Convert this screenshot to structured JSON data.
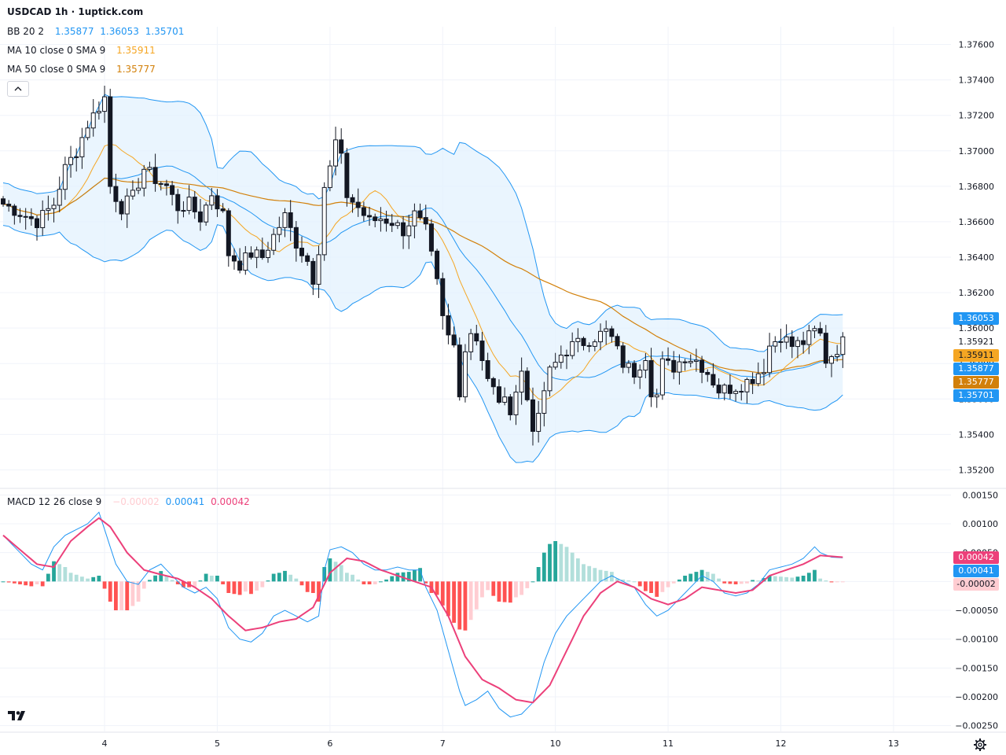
{
  "header": {
    "title": "USDCAD 1h · 1uptick.com",
    "bb_label": "BB 20 2",
    "bb_values": [
      "1.35877",
      "1.36053",
      "1.35701"
    ],
    "ma10_label": "MA 10 close 0 SMA 9",
    "ma10_value": "1.35911",
    "ma50_label": "MA 50 close 0 SMA 9",
    "ma50_value": "1.35777",
    "macd_label": "MACD 12 26 close 9",
    "macd_values": [
      "−0.00002",
      "0.00041",
      "0.00042"
    ]
  },
  "colors": {
    "up": "#131722",
    "down": "#131722",
    "bb": "#2196f3",
    "bb_fill": "#e3f2fd",
    "ma10": "#f5a623",
    "ma50": "#d2800a",
    "macd": "#2196f3",
    "signal": "#ec407a",
    "hist_up_strong": "#26a69a",
    "hist_up_weak": "#b2dfdb",
    "hist_down_strong": "#ff5252",
    "hist_down_weak": "#ffcdd2"
  },
  "price_tags": [
    {
      "text": "1.36053",
      "bg": "#2196f3",
      "fg": "#ffffff",
      "value": 1.36053
    },
    {
      "text": "1.35921",
      "bg": "#ffffff",
      "fg": "#131722",
      "value": 1.35921
    },
    {
      "text": "1.35911",
      "bg": "#f5a623",
      "fg": "#131722",
      "value": 1.35911
    },
    {
      "text": "1.35877",
      "bg": "#2196f3",
      "fg": "#ffffff",
      "value": 1.35877
    },
    {
      "text": "1.35777",
      "bg": "#d2800a",
      "fg": "#ffffff",
      "value": 1.35777
    },
    {
      "text": "1.35701",
      "bg": "#2196f3",
      "fg": "#ffffff",
      "value": 1.35701
    }
  ],
  "macd_tags": [
    {
      "text": "0.00042",
      "bg": "#ec407a",
      "fg": "#ffffff",
      "value": 0.00042
    },
    {
      "text": "0.00041",
      "bg": "#2196f3",
      "fg": "#ffffff",
      "value": 0.00041
    },
    {
      "text": "-0.00002",
      "bg": "#ffcdd2",
      "fg": "#131722",
      "value": -2e-05
    }
  ],
  "chart_data": {
    "type": "candlestick",
    "symbol": "USDCAD",
    "interval": "1h",
    "x_labels": [
      {
        "label": "4",
        "bar": 18
      },
      {
        "label": "5",
        "bar": 38
      },
      {
        "label": "6",
        "bar": 58
      },
      {
        "label": "7",
        "bar": 78
      },
      {
        "label": "10",
        "bar": 98
      },
      {
        "label": "11",
        "bar": 118
      },
      {
        "label": "12",
        "bar": 138
      },
      {
        "label": "13",
        "bar": 158
      }
    ],
    "price_axis": {
      "min": 1.351,
      "max": 1.377,
      "ticks": [
        "1.37600",
        "1.37400",
        "1.37200",
        "1.37000",
        "1.36800",
        "1.36600",
        "1.36400",
        "1.36200",
        "1.36000",
        "1.35800",
        "1.35600",
        "1.35400",
        "1.35200"
      ]
    },
    "macd_axis": {
      "min": -0.0026,
      "max": 0.0016,
      "ticks": [
        "0.00150",
        "0.00100",
        "0.00050",
        "0.00000",
        "-0.00050",
        "-0.00100",
        "-0.00150",
        "-0.00200",
        "-0.00250"
      ]
    },
    "close_anchors": [
      [
        0,
        1.367
      ],
      [
        3,
        1.3665
      ],
      [
        6,
        1.366
      ],
      [
        9,
        1.367
      ],
      [
        11,
        1.369
      ],
      [
        13,
        1.37
      ],
      [
        15,
        1.3715
      ],
      [
        17,
        1.3725
      ],
      [
        18,
        1.373
      ],
      [
        19,
        1.368
      ],
      [
        21,
        1.3668
      ],
      [
        23,
        1.3674
      ],
      [
        25,
        1.369
      ],
      [
        27,
        1.3684
      ],
      [
        29,
        1.368
      ],
      [
        31,
        1.3668
      ],
      [
        33,
        1.367
      ],
      [
        35,
        1.3662
      ],
      [
        37,
        1.3676
      ],
      [
        39,
        1.3664
      ],
      [
        40,
        1.3642
      ],
      [
        42,
        1.3636
      ],
      [
        44,
        1.3642
      ],
      [
        46,
        1.364
      ],
      [
        48,
        1.3652
      ],
      [
        50,
        1.3663
      ],
      [
        52,
        1.3648
      ],
      [
        54,
        1.3638
      ],
      [
        55,
        1.3628
      ],
      [
        56,
        1.3645
      ],
      [
        57,
        1.368
      ],
      [
        58,
        1.369
      ],
      [
        59,
        1.3705
      ],
      [
        60,
        1.3695
      ],
      [
        61,
        1.3675
      ],
      [
        63,
        1.3668
      ],
      [
        65,
        1.366
      ],
      [
        67,
        1.3662
      ],
      [
        69,
        1.366
      ],
      [
        71,
        1.3655
      ],
      [
        73,
        1.3664
      ],
      [
        75,
        1.3655
      ],
      [
        76,
        1.364
      ],
      [
        77,
        1.3625
      ],
      [
        78,
        1.3605
      ],
      [
        79,
        1.3595
      ],
      [
        80,
        1.359
      ],
      [
        81,
        1.3565
      ],
      [
        82,
        1.3588
      ],
      [
        83,
        1.3598
      ],
      [
        84,
        1.3595
      ],
      [
        86,
        1.357
      ],
      [
        88,
        1.356
      ],
      [
        90,
        1.3555
      ],
      [
        92,
        1.3575
      ],
      [
        94,
        1.3545
      ],
      [
        95,
        1.3548
      ],
      [
        96,
        1.3565
      ],
      [
        97,
        1.3575
      ],
      [
        99,
        1.3585
      ],
      [
        101,
        1.359
      ],
      [
        103,
        1.3592
      ],
      [
        105,
        1.3595
      ],
      [
        107,
        1.3598
      ],
      [
        108,
        1.3594
      ],
      [
        110,
        1.358
      ],
      [
        112,
        1.3575
      ],
      [
        114,
        1.3585
      ],
      [
        115,
        1.3565
      ],
      [
        116,
        1.3562
      ],
      [
        117,
        1.358
      ],
      [
        119,
        1.3578
      ],
      [
        121,
        1.3584
      ],
      [
        123,
        1.3582
      ],
      [
        125,
        1.3575
      ],
      [
        127,
        1.3565
      ],
      [
        129,
        1.3566
      ],
      [
        131,
        1.3568
      ],
      [
        133,
        1.3572
      ],
      [
        135,
        1.3578
      ],
      [
        136,
        1.359
      ],
      [
        138,
        1.3596
      ],
      [
        140,
        1.359
      ],
      [
        142,
        1.3592
      ],
      [
        144,
        1.3598
      ],
      [
        145,
        1.3596
      ],
      [
        146,
        1.3582
      ],
      [
        147,
        1.3585
      ],
      [
        149,
        1.3592
      ]
    ],
    "macd_anchors": [
      [
        0,
        0.0008
      ],
      [
        3,
        0.0005
      ],
      [
        5,
        0.0003
      ],
      [
        7,
        0.0002
      ],
      [
        9,
        0.0006
      ],
      [
        11,
        0.0008
      ],
      [
        13,
        0.0009
      ],
      [
        15,
        0.001
      ],
      [
        16,
        0.0011
      ],
      [
        17,
        0.0012
      ],
      [
        18,
        0.0009
      ],
      [
        20,
        0.0003
      ],
      [
        22,
        0.0
      ],
      [
        24,
        -5e-05
      ],
      [
        26,
        0.0002
      ],
      [
        28,
        0.0003
      ],
      [
        30,
        0.0001
      ],
      [
        32,
        -0.0001
      ],
      [
        34,
        -0.0002
      ],
      [
        36,
        -0.0001
      ],
      [
        38,
        -0.0003
      ],
      [
        40,
        -0.0008
      ],
      [
        42,
        -0.001
      ],
      [
        44,
        -0.00105
      ],
      [
        46,
        -0.0009
      ],
      [
        48,
        -0.0006
      ],
      [
        50,
        -0.0005
      ],
      [
        52,
        -0.0006
      ],
      [
        54,
        -0.0007
      ],
      [
        56,
        -0.0006
      ],
      [
        57,
        0.0002
      ],
      [
        58,
        0.00055
      ],
      [
        60,
        0.0006
      ],
      [
        62,
        0.0005
      ],
      [
        64,
        0.0003
      ],
      [
        66,
        0.0002
      ],
      [
        68,
        0.0002
      ],
      [
        70,
        0.00025
      ],
      [
        72,
        0.0002
      ],
      [
        74,
        0.0002
      ],
      [
        75,
        -0.0001
      ],
      [
        77,
        -0.0005
      ],
      [
        79,
        -0.0012
      ],
      [
        81,
        -0.0019
      ],
      [
        82,
        -0.00215
      ],
      [
        84,
        -0.00205
      ],
      [
        86,
        -0.0019
      ],
      [
        88,
        -0.0022
      ],
      [
        90,
        -0.00235
      ],
      [
        92,
        -0.0023
      ],
      [
        94,
        -0.0021
      ],
      [
        96,
        -0.0014
      ],
      [
        98,
        -0.0009
      ],
      [
        100,
        -0.0006
      ],
      [
        102,
        -0.0004
      ],
      [
        104,
        -0.0002
      ],
      [
        106,
        0.0
      ],
      [
        108,
        0.0001
      ],
      [
        110,
        0.0
      ],
      [
        112,
        -0.0001
      ],
      [
        114,
        -0.0004
      ],
      [
        115,
        -0.0005
      ],
      [
        116,
        -0.0006
      ],
      [
        118,
        -0.0005
      ],
      [
        120,
        -0.0003
      ],
      [
        122,
        -0.0001
      ],
      [
        124,
        0.0001
      ],
      [
        126,
        0.0
      ],
      [
        128,
        -0.0002
      ],
      [
        130,
        -0.00025
      ],
      [
        132,
        -0.0002
      ],
      [
        134,
        -5e-05
      ],
      [
        136,
        0.0002
      ],
      [
        138,
        0.00025
      ],
      [
        140,
        0.0003
      ],
      [
        142,
        0.0004
      ],
      [
        144,
        0.0006
      ],
      [
        145,
        0.0005
      ],
      [
        147,
        0.00042
      ],
      [
        149,
        0.00041
      ]
    ],
    "signal_anchors": [
      [
        0,
        0.0008
      ],
      [
        3,
        0.00055
      ],
      [
        6,
        0.0003
      ],
      [
        9,
        0.00025
      ],
      [
        12,
        0.0007
      ],
      [
        15,
        0.00095
      ],
      [
        17,
        0.0011
      ],
      [
        19,
        0.00095
      ],
      [
        22,
        0.0005
      ],
      [
        25,
        0.0002
      ],
      [
        28,
        0.00012
      ],
      [
        31,
        5e-05
      ],
      [
        34,
        -0.0001
      ],
      [
        37,
        -0.0003
      ],
      [
        40,
        -0.0006
      ],
      [
        43,
        -0.00085
      ],
      [
        46,
        -0.0008
      ],
      [
        49,
        -0.0007
      ],
      [
        52,
        -0.00065
      ],
      [
        55,
        -0.00045
      ],
      [
        58,
        0.00015
      ],
      [
        61,
        0.0004
      ],
      [
        64,
        0.00035
      ],
      [
        67,
        0.0002
      ],
      [
        70,
        0.0001
      ],
      [
        73,
        0.0
      ],
      [
        76,
        -0.0001
      ],
      [
        79,
        -0.0006
      ],
      [
        82,
        -0.0013
      ],
      [
        85,
        -0.0017
      ],
      [
        88,
        -0.00185
      ],
      [
        91,
        -0.00205
      ],
      [
        94,
        -0.0021
      ],
      [
        97,
        -0.0018
      ],
      [
        100,
        -0.0012
      ],
      [
        103,
        -0.0006
      ],
      [
        106,
        -0.0002
      ],
      [
        109,
        0.0
      ],
      [
        112,
        -0.0001
      ],
      [
        115,
        -0.0003
      ],
      [
        118,
        -0.0004
      ],
      [
        121,
        -0.0003
      ],
      [
        124,
        -0.0001
      ],
      [
        127,
        -0.00015
      ],
      [
        130,
        -0.0002
      ],
      [
        133,
        -0.00015
      ],
      [
        136,
        0.0001
      ],
      [
        139,
        0.0002
      ],
      [
        142,
        0.0003
      ],
      [
        145,
        0.00045
      ],
      [
        149,
        0.00042
      ]
    ]
  }
}
